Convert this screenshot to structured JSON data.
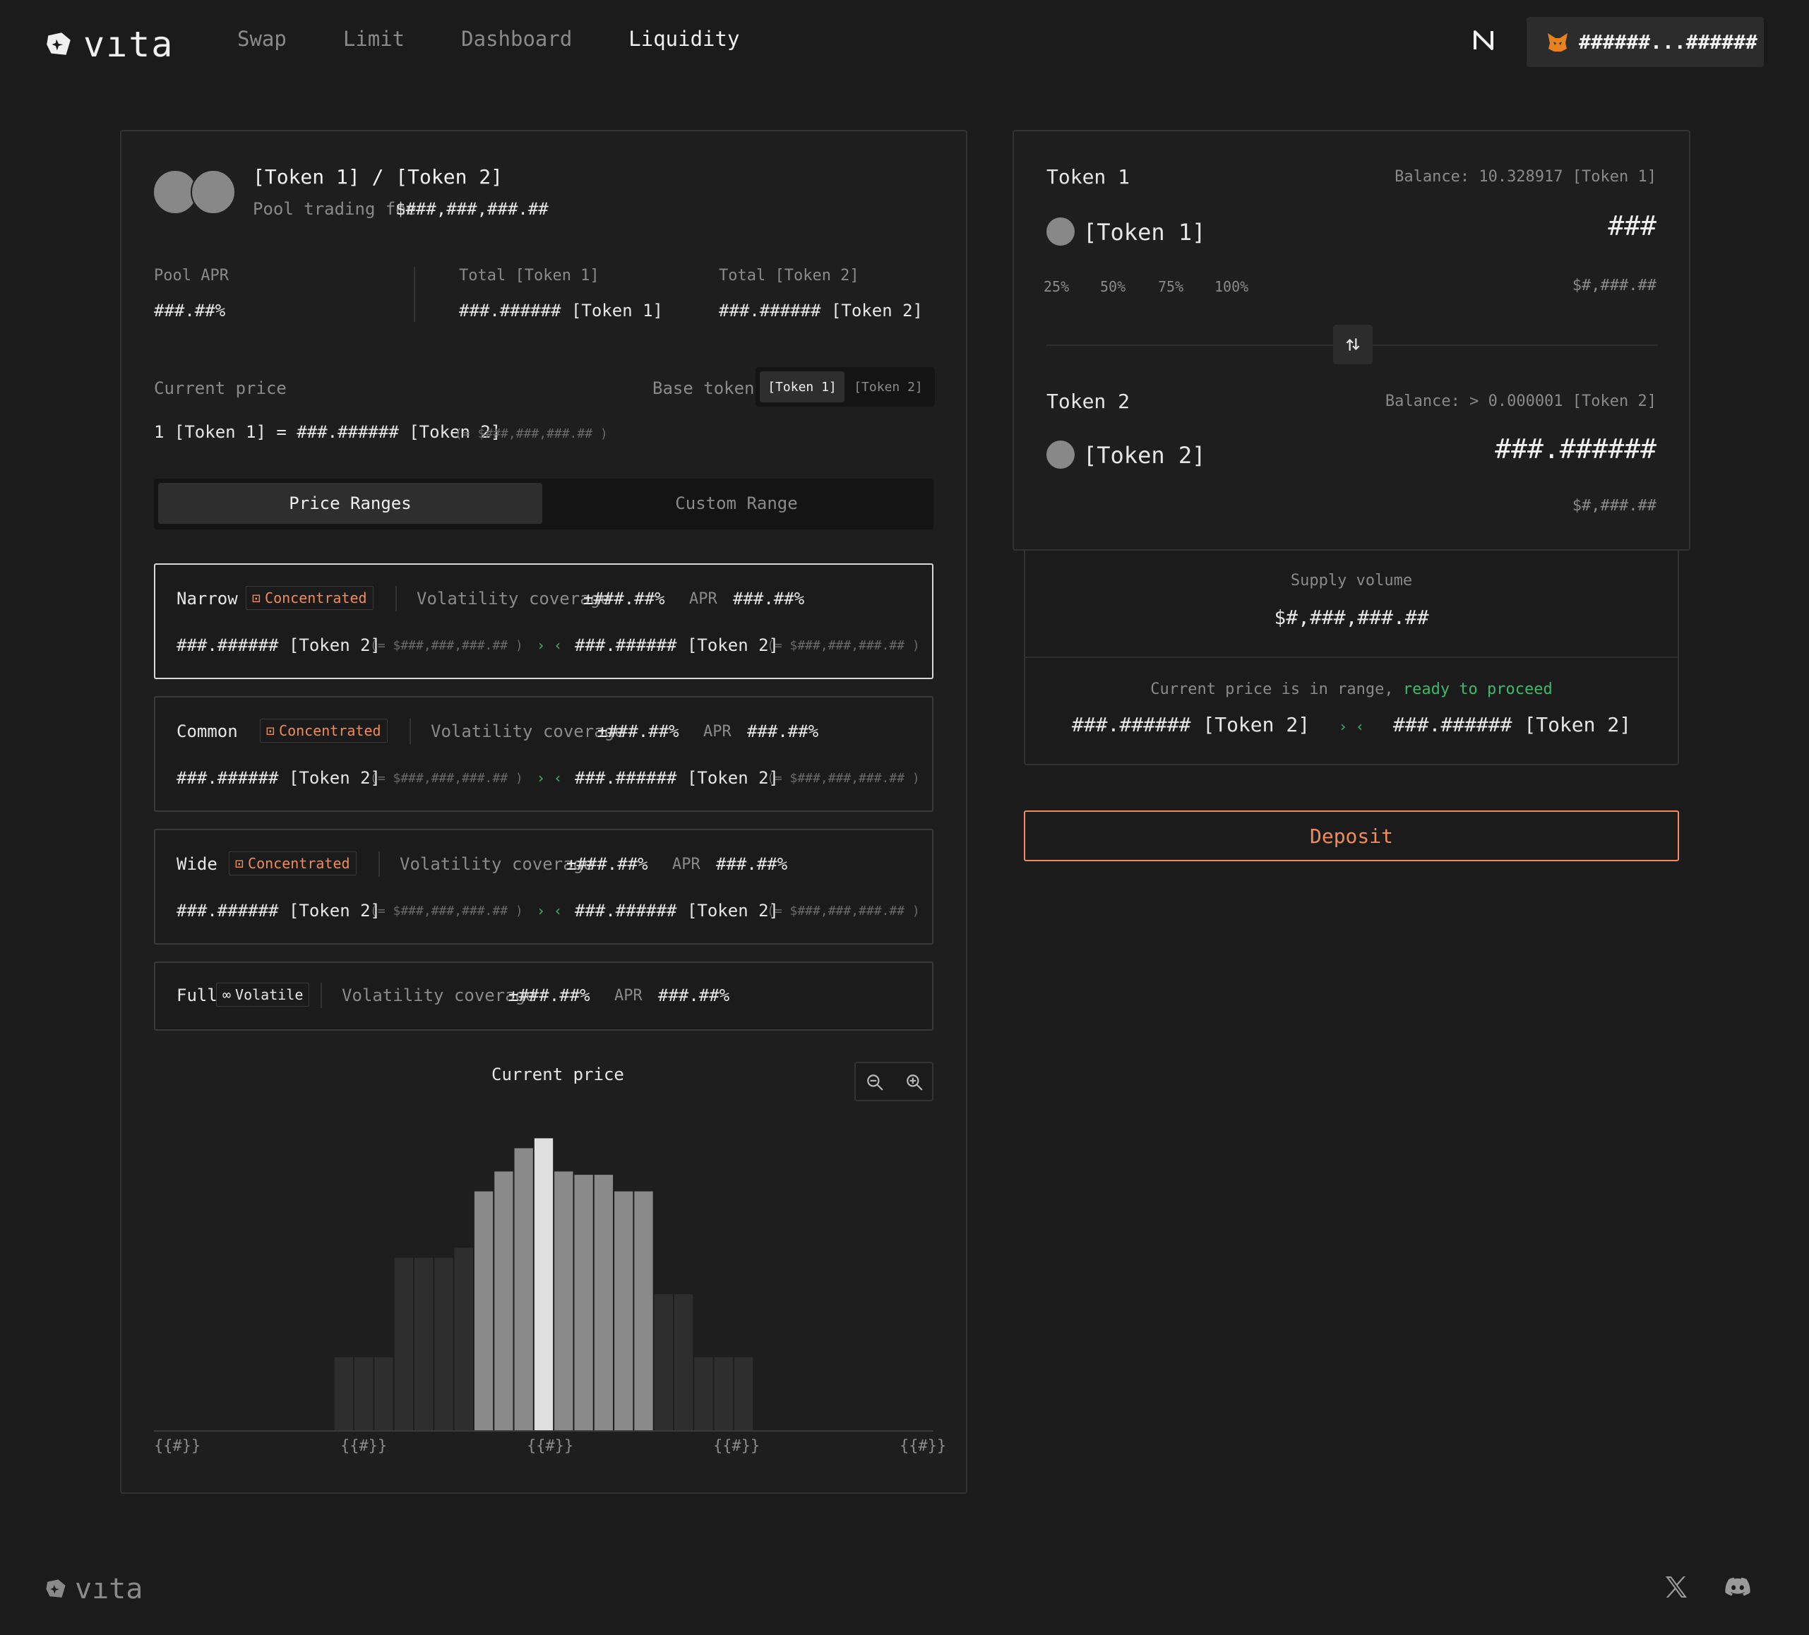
{
  "header": {
    "brand": "vıta",
    "nav": [
      "Swap",
      "Limit",
      "Dashboard",
      "Liquidity"
    ],
    "active_nav": "Liquidity",
    "wallet_address": "######...######",
    "icons": [
      "star-logo-icon",
      "network-icon",
      "metamask-fox-icon"
    ]
  },
  "pool": {
    "pair": "[Token 1] / [Token 2]",
    "fee_label": "Pool trading fee",
    "fee_value": "$###,###,###.##",
    "stats": [
      {
        "label": "Pool APR",
        "value": "###.##%"
      },
      {
        "label": "Total [Token 1]",
        "value": "###.###### [Token 1]"
      },
      {
        "label": "Total [Token 2]",
        "value": "###.###### [Token 2]"
      }
    ],
    "current_price_label": "Current price",
    "base_token_label": "Base token",
    "base_token_options": [
      "[Token 1]",
      "[Token 2]"
    ],
    "current_price_value": "1 [Token 1] = ###.###### [Token 2]",
    "current_price_usd": "(= $###,###,###.## )"
  },
  "range_tabs": [
    "Price Ranges",
    "Custom Range"
  ],
  "ranges": [
    {
      "name": "Narrow",
      "badge": "Concentrated",
      "vol_label": "Volatility coverage",
      "vol_value": "±###.##%",
      "apr_label": "APR",
      "apr_value": "###.##%",
      "low": "###.###### [Token 2]",
      "low_usd": "(= $###,###,###.## )",
      "arrows": "› ‹",
      "high": "###.###### [Token 2]",
      "high_usd": "(= $###,###,###.## )"
    },
    {
      "name": "Common",
      "badge": "Concentrated",
      "vol_label": "Volatility coverage",
      "vol_value": "±###.##%",
      "apr_label": "APR",
      "apr_value": "###.##%",
      "low": "###.###### [Token 2]",
      "low_usd": "(= $###,###,###.## )",
      "arrows": "› ‹",
      "high": "###.###### [Token 2]",
      "high_usd": "(= $###,###,###.## )"
    },
    {
      "name": "Wide",
      "badge": "Concentrated",
      "vol_label": "Volatility coverage",
      "vol_value": "±###.##%",
      "apr_label": "APR",
      "apr_value": "###.##%",
      "low": "###.###### [Token 2]",
      "low_usd": "(= $###,###,###.## )",
      "arrows": "› ‹",
      "high": "###.###### [Token 2]",
      "high_usd": "(= $###,###,###.## )"
    },
    {
      "name": "Full",
      "badge": "Volatile",
      "vol_label": "Volatility coverage",
      "vol_value": "±###.##%",
      "apr_label": "APR",
      "apr_value": "###.##%"
    }
  ],
  "chart": {
    "label": "Current price",
    "x_ticks": [
      "{{#}}",
      "{{#}}",
      "{{#}}",
      "{{#}}",
      "{{#}}"
    ],
    "zoom_icons": [
      "zoom-out-icon",
      "zoom-in-icon"
    ]
  },
  "chart_data": {
    "type": "bar",
    "values": [
      0,
      0,
      0,
      0,
      0,
      0,
      0,
      0,
      0,
      22,
      22,
      22,
      52,
      52,
      52,
      55,
      72,
      78,
      85,
      88,
      78,
      77,
      77,
      72,
      72,
      41,
      41,
      22,
      22,
      22,
      0,
      0,
      0,
      0,
      0,
      0,
      0,
      0,
      0
    ],
    "highlight_index": 19,
    "inner_range": [
      16,
      24
    ],
    "ylim": [
      0,
      100
    ]
  },
  "deposit_form": {
    "token1": {
      "label": "Token 1",
      "balance": "Balance: 10.328917 [Token 1]",
      "name": "[Token 1]",
      "amount": "###",
      "usd": "$#,###.##",
      "presets": [
        "25%",
        "50%",
        "75%",
        "100%"
      ]
    },
    "token2": {
      "label": "Token 2",
      "balance": "Balance: > 0.000001 [Token 2]",
      "name": "[Token 2]",
      "amount": "###.######",
      "usd": "$#,###.##"
    },
    "supply_label": "Supply volume",
    "supply_value": "$#,###,###.##",
    "range_status_prefix": "Current price is in range,",
    "range_status_ok": "ready to proceed",
    "range_low": "###.###### [Token 2]",
    "range_arrows": "› ‹",
    "range_high": "###.###### [Token 2]",
    "deposit_label": "Deposit"
  },
  "footer": {
    "brand": "vıta",
    "icons": [
      "x-twitter-icon",
      "discord-icon"
    ]
  }
}
